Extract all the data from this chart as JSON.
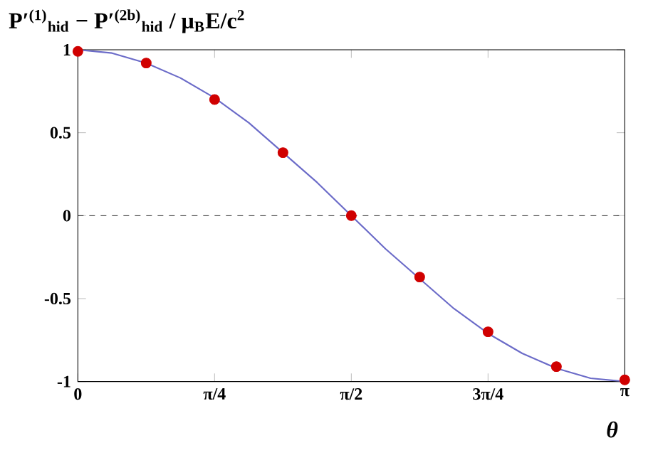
{
  "chart_data": {
    "type": "line",
    "ylabel": "P′$^{(1)}$$_{hid}$ − P′$^{(2b)}$$_{hid}$ / μ$_{B}$E/c$^{2}$",
    "xlabel": "θ",
    "xlim": [
      0,
      3.14159
    ],
    "ylim": [
      -1,
      1
    ],
    "xticks": [
      {
        "value": 0,
        "label": "0"
      },
      {
        "value": 0.7854,
        "label": "π/4"
      },
      {
        "value": 1.5708,
        "label": "π/2"
      },
      {
        "value": 2.3562,
        "label": "3π/4"
      },
      {
        "value": 3.14159,
        "label": "π"
      }
    ],
    "yticks": [
      -1,
      -0.5,
      0,
      0.5,
      1
    ],
    "ref_lines": [
      {
        "axis": "y",
        "value": 0,
        "line_style": "dashed",
        "color": "#000000"
      }
    ],
    "series": [
      {
        "color": "#6b6bc8",
        "marker": "none",
        "x": [
          0,
          0.19635,
          0.3927,
          0.58905,
          0.7854,
          0.98175,
          1.1781,
          1.37445,
          1.5708,
          1.76715,
          1.9635,
          2.15985,
          2.3562,
          2.55255,
          2.7489,
          2.94525,
          3.14159
        ],
        "values": [
          1,
          0.98,
          0.92,
          0.83,
          0.71,
          0.56,
          0.38,
          0.2,
          0,
          -0.2,
          -0.38,
          -0.56,
          -0.71,
          -0.83,
          -0.92,
          -0.98,
          -1
        ]
      },
      {
        "type": "scatter",
        "color": "#d00000",
        "marker": "circle",
        "x": [
          0,
          0.3927,
          0.7854,
          1.1781,
          1.5708,
          1.9635,
          2.3562,
          2.7489,
          3.14159
        ],
        "values": [
          0.99,
          0.92,
          0.7,
          0.38,
          0,
          -0.37,
          -0.7,
          -0.91,
          -0.99
        ]
      }
    ]
  }
}
